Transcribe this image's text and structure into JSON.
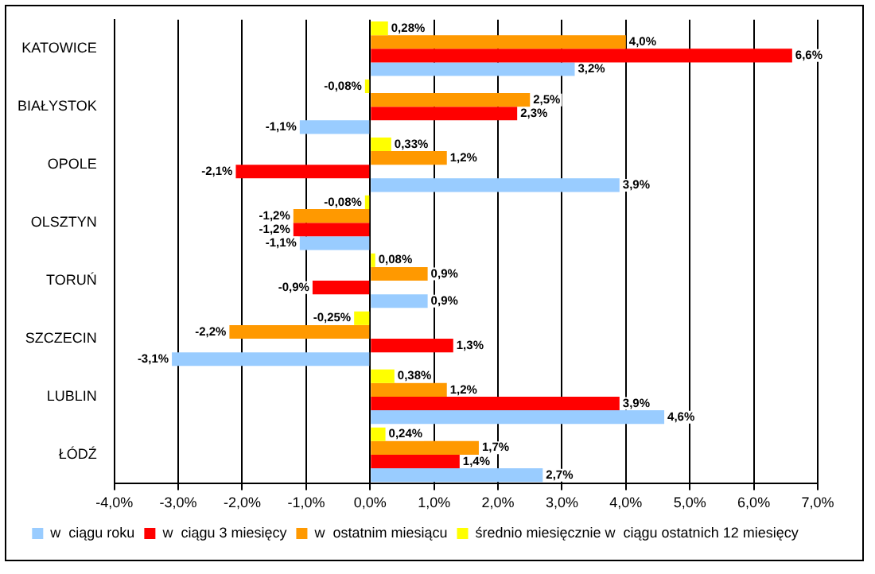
{
  "chart_data": {
    "type": "bar",
    "orientation": "horizontal",
    "categories": [
      "KATOWICE",
      "BIAŁYSTOK",
      "OPOLE",
      "OLSZTYN",
      "TORUŃ",
      "SZCZECIN",
      "LUBLIN",
      "ŁÓDŹ"
    ],
    "series": [
      {
        "name": "średnio miesięcznie w  ciągu ostatnich 12 miesięcy",
        "color": "#ffff00",
        "values": [
          0.28,
          -0.08,
          0.33,
          -0.08,
          0.08,
          -0.25,
          0.38,
          0.24
        ],
        "value_labels": [
          "0,28%",
          "-0,08%",
          "0,33%",
          "-0,08%",
          "0,08%",
          "-0,25%",
          "0,38%",
          "0,24%"
        ]
      },
      {
        "name": "w  ostatnim miesiącu",
        "color": "#ff9900",
        "values": [
          4.0,
          2.5,
          1.2,
          -1.2,
          0.9,
          -2.2,
          1.2,
          1.7
        ],
        "value_labels": [
          "4,0%",
          "2,5%",
          "1,2%",
          "-1,2%",
          "0,9%",
          "-2,2%",
          "1,2%",
          "1,7%"
        ]
      },
      {
        "name": "w  ciągu 3 miesięcy",
        "color": "#ff0000",
        "values": [
          6.6,
          2.3,
          -2.1,
          -1.2,
          -0.9,
          1.3,
          3.9,
          1.4
        ],
        "value_labels": [
          "6,6%",
          "2,3%",
          "-2,1%",
          "-1,2%",
          "-0,9%",
          "1,3%",
          "3,9%",
          "1,4%"
        ]
      },
      {
        "name": "w  ciągu roku",
        "color": "#99ccff",
        "values": [
          3.2,
          -1.1,
          3.9,
          -1.1,
          0.9,
          -3.1,
          4.6,
          2.7
        ],
        "value_labels": [
          "3,2%",
          "-1,1%",
          "3,9%",
          "-1,1%",
          "0,9%",
          "-3,1%",
          "4,6%",
          "2,7%"
        ]
      }
    ],
    "xlim": [
      -4,
      7
    ],
    "xticks": [
      {
        "value": -4,
        "label": "-4,0%"
      },
      {
        "value": -3,
        "label": "-3,0%"
      },
      {
        "value": -2,
        "label": "-2,0%"
      },
      {
        "value": -1,
        "label": "-1,0%"
      },
      {
        "value": 0,
        "label": "0,0%"
      },
      {
        "value": 1,
        "label": "1,0%"
      },
      {
        "value": 2,
        "label": "2,0%"
      },
      {
        "value": 3,
        "label": "3,0%"
      },
      {
        "value": 4,
        "label": "4,0%"
      },
      {
        "value": 5,
        "label": "5,0%"
      },
      {
        "value": 6,
        "label": "6,0%"
      },
      {
        "value": 7,
        "label": "7,0%"
      }
    ],
    "grid": "x",
    "legend": "bottom"
  }
}
